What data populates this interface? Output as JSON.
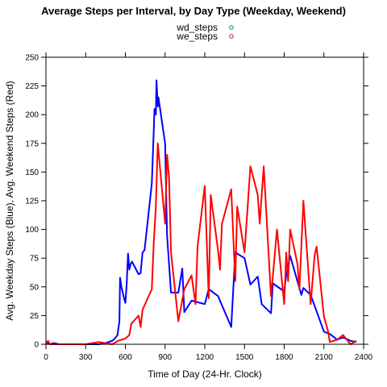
{
  "chart_data": {
    "type": "line",
    "title": "Average Steps per Interval, by Day Type (Weekday, Weekend)",
    "xlabel": "Time of Day (24-Hr. Clock)",
    "ylabel": "Avg. Weekday Steps (Blue), Avg. Weekend Steps (Red)",
    "xlim": [
      0,
      2400
    ],
    "ylim": [
      0,
      250
    ],
    "x_ticks": [
      0,
      300,
      600,
      900,
      1200,
      1500,
      1800,
      2100,
      2400
    ],
    "y_ticks": [
      0,
      25,
      50,
      75,
      100,
      125,
      150,
      175,
      200,
      225,
      250
    ],
    "legend_position": "top-center",
    "legend": [
      {
        "label": "wd_steps",
        "marker_color": "#00868B"
      },
      {
        "label": "we_steps",
        "marker_color": "#CD1076"
      }
    ],
    "grid": false,
    "series": [
      {
        "name": "wd_steps",
        "color": "#0000FF",
        "x": [
          0,
          30,
          60,
          100,
          200,
          300,
          400,
          450,
          500,
          520,
          540,
          555,
          560,
          570,
          580,
          590,
          600,
          610,
          620,
          630,
          640,
          650,
          700,
          715,
          730,
          745,
          800,
          815,
          820,
          830,
          835,
          845,
          850,
          900,
          915,
          945,
          1000,
          1030,
          1045,
          1100,
          1200,
          1230,
          1300,
          1400,
          1430,
          1500,
          1545,
          1600,
          1630,
          1700,
          1715,
          1800,
          1815,
          1845,
          1900,
          1930,
          1945,
          2000,
          2100,
          2145,
          2200,
          2245,
          2300,
          2345
        ],
        "y": [
          2,
          0,
          1,
          0,
          0,
          0,
          0,
          1,
          3,
          5,
          8,
          20,
          58,
          50,
          45,
          40,
          36,
          52,
          79,
          65,
          70,
          72,
          61,
          62,
          80,
          82,
          140,
          188,
          205,
          200,
          230,
          207,
          215,
          175,
          95,
          45,
          45,
          66,
          28,
          38,
          35,
          48,
          42,
          15,
          80,
          75,
          52,
          59,
          35,
          27,
          53,
          46,
          60,
          77,
          55,
          43,
          49,
          43,
          11,
          9,
          4,
          6,
          3,
          2
        ]
      },
      {
        "name": "we_steps",
        "color": "#FF0000",
        "x": [
          0,
          15,
          30,
          100,
          200,
          300,
          400,
          500,
          545,
          600,
          630,
          645,
          700,
          715,
          730,
          745,
          800,
          815,
          830,
          845,
          900,
          915,
          930,
          945,
          1000,
          1045,
          1100,
          1130,
          1145,
          1200,
          1230,
          1245,
          1300,
          1315,
          1330,
          1400,
          1430,
          1445,
          1500,
          1545,
          1600,
          1615,
          1630,
          1645,
          1700,
          1715,
          1745,
          1800,
          1815,
          1830,
          1845,
          1900,
          1915,
          1945,
          2000,
          2030,
          2045,
          2100,
          2130,
          2145,
          2200,
          2245,
          2300,
          2330,
          2345
        ],
        "y": [
          0,
          3,
          0,
          0,
          0,
          0,
          2,
          0,
          3,
          5,
          8,
          18,
          25,
          15,
          30,
          34,
          48,
          90,
          120,
          175,
          105,
          165,
          145,
          80,
          20,
          48,
          60,
          35,
          85,
          138,
          40,
          130,
          82,
          65,
          105,
          135,
          55,
          120,
          80,
          155,
          130,
          105,
          130,
          155,
          42,
          60,
          100,
          35,
          80,
          55,
          100,
          70,
          48,
          125,
          35,
          78,
          85,
          24,
          12,
          2,
          4,
          8,
          0,
          2,
          3
        ]
      }
    ]
  }
}
